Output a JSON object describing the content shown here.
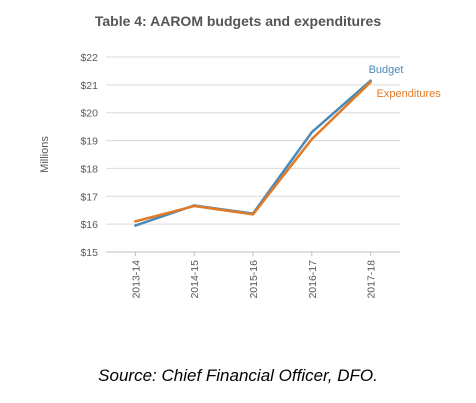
{
  "chart_data": {
    "type": "line",
    "title": "Table 4: AAROM budgets and expenditures",
    "ylabel": "Millions",
    "xlabel": "",
    "categories": [
      "2013-14",
      "2014-15",
      "2015-16",
      "2016-17",
      "2017-18"
    ],
    "ylim": [
      15,
      22
    ],
    "yticks": [
      15,
      16,
      17,
      18,
      19,
      20,
      21,
      22
    ],
    "ytick_labels": [
      "$15",
      "$16",
      "$17",
      "$18",
      "$19",
      "$20",
      "$21",
      "$22"
    ],
    "grid": true,
    "legend_placement": "inline-right",
    "series": [
      {
        "name": "Budget",
        "values": [
          15.95,
          16.67,
          16.38,
          19.3,
          21.15
        ],
        "color": "#4a8ab8"
      },
      {
        "name": "Expenditures",
        "values": [
          16.1,
          16.65,
          16.35,
          19.05,
          21.1
        ],
        "color": "#e07b28"
      }
    ]
  },
  "caption": "Source: Chief Financial Officer, DFO."
}
